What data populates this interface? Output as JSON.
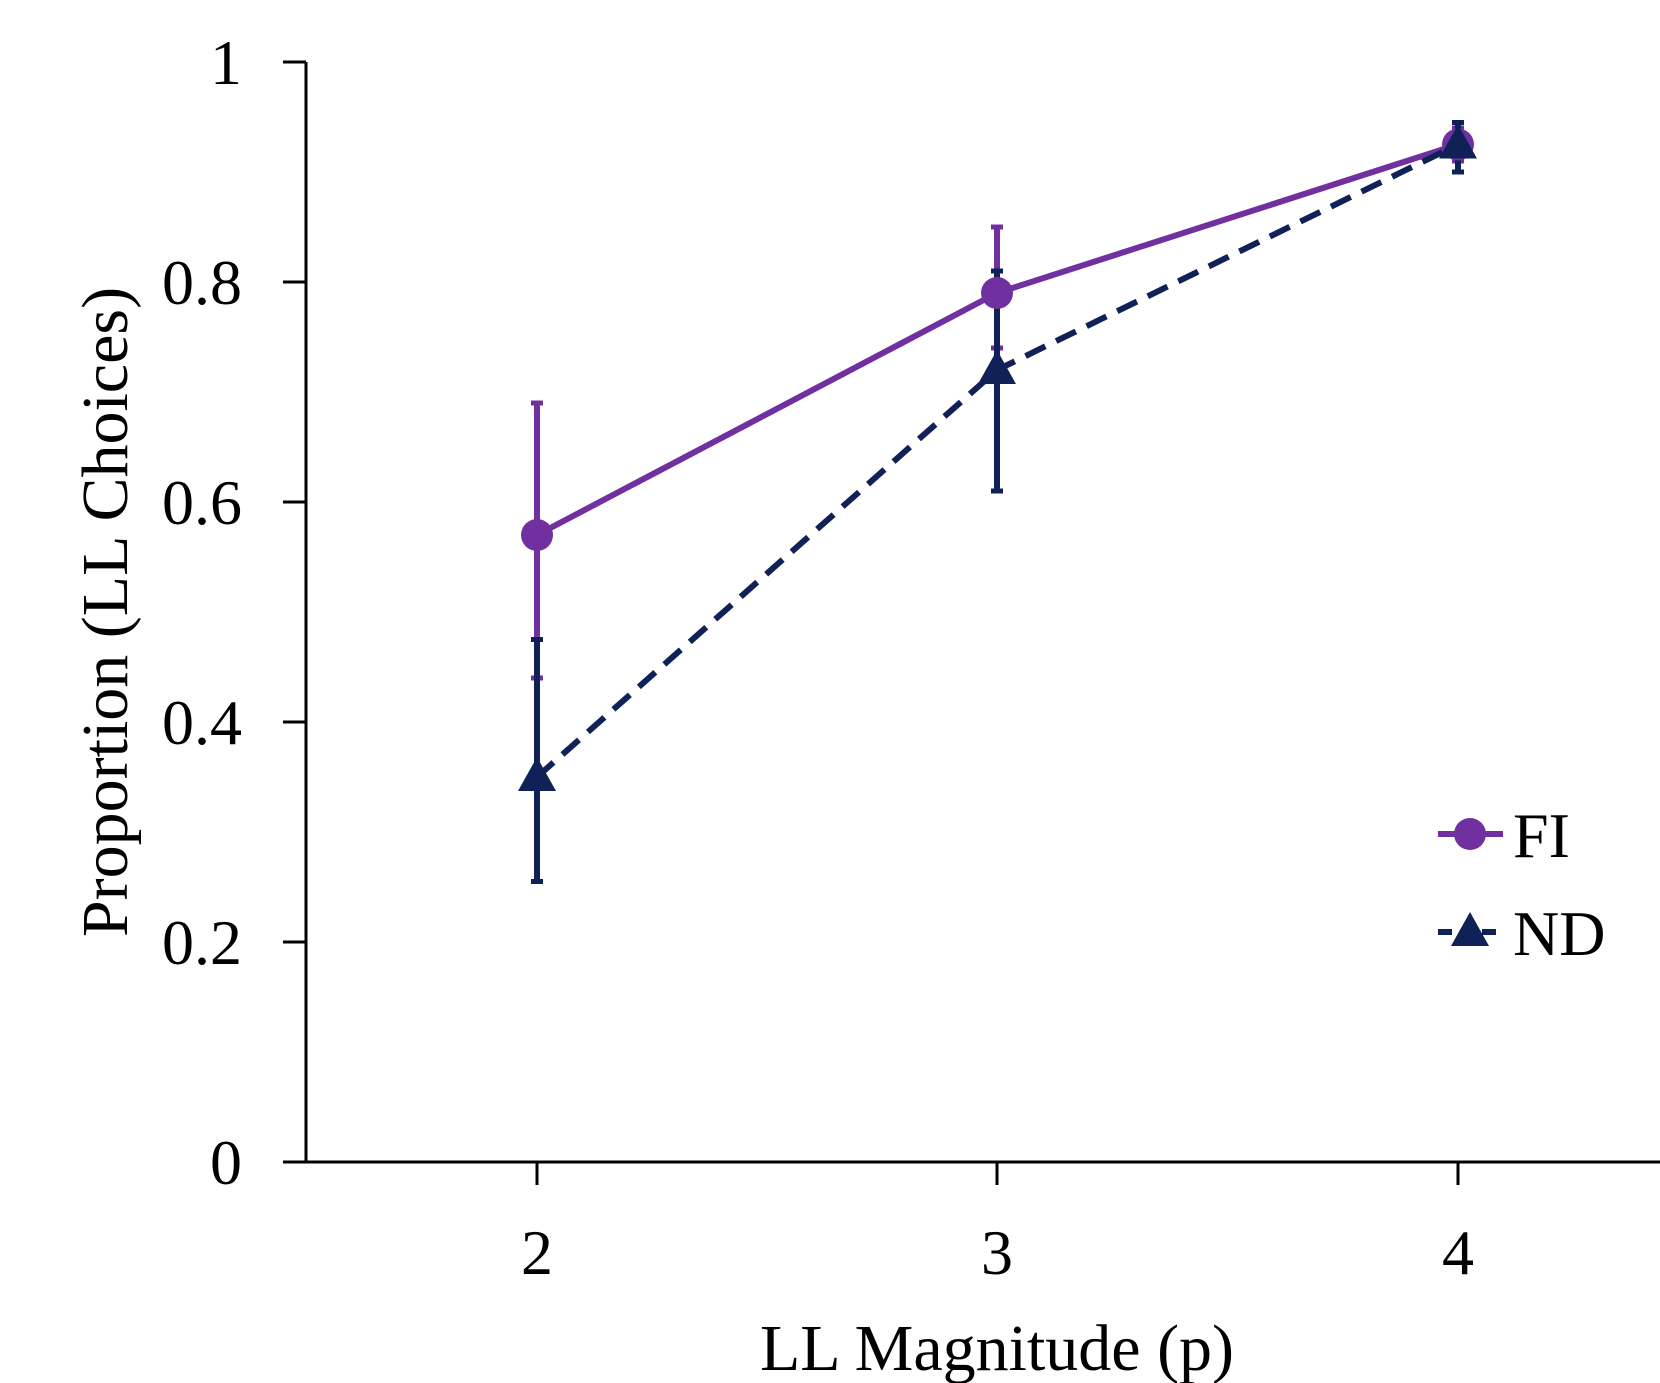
{
  "chart_data": {
    "type": "line",
    "title": "",
    "xlabel": "LL Magnitude (p)",
    "ylabel": "Proportion (LL Choices)",
    "x": [
      2,
      3,
      4
    ],
    "xticks": [
      "2",
      "3",
      "4"
    ],
    "yticks": [
      "0",
      "0.2",
      "0.4",
      "0.6",
      "0.8",
      "1"
    ],
    "ylim": [
      0,
      1
    ],
    "grid": false,
    "legend_position": "bottom-right",
    "series": [
      {
        "name": "FI",
        "values": [
          0.57,
          0.79,
          0.925
        ],
        "error_upper": [
          0.69,
          0.85,
          0.94
        ],
        "error_lower": [
          0.44,
          0.74,
          0.91
        ],
        "color": "#7030a0",
        "line_style": "solid",
        "marker": "circle"
      },
      {
        "name": "ND",
        "values": [
          0.35,
          0.72,
          0.925
        ],
        "error_upper": [
          0.475,
          0.81,
          0.945
        ],
        "error_lower": [
          0.255,
          0.61,
          0.9
        ],
        "color": "#0f2157",
        "line_style": "dashed",
        "marker": "triangle"
      }
    ]
  }
}
